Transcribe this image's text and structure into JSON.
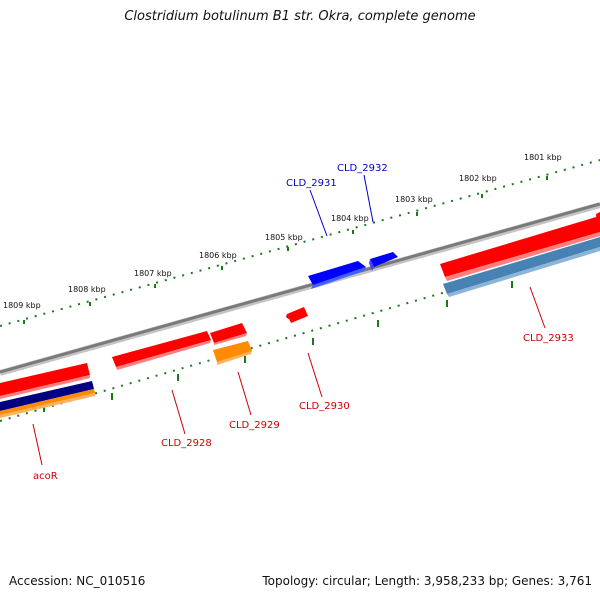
{
  "title": "Clostridium botulinum B1 str. Okra, complete genome",
  "footer": {
    "accession": "Accession: NC_010516",
    "summary": "Topology: circular; Length: 3,958,233 bp; Genes: 3,761"
  },
  "colors": {
    "backbone": "#7a7a7a",
    "tick": "#1a7a1a",
    "gene_red": "#ff0000",
    "gene_blue": "#0000ff",
    "gene_navy": "#000080",
    "gene_orange": "#ff8c00",
    "gene_steel": "#4682b4"
  },
  "kbp_labels": [
    "1801 kbp",
    "1802 kbp",
    "1803 kbp",
    "1804 kbp",
    "1805 kbp",
    "1806 kbp",
    "1807 kbp",
    "1808 kbp",
    "1809 kbp"
  ],
  "gene_labels": [
    {
      "name": "CLD_2931",
      "color": "#0000cc"
    },
    {
      "name": "CLD_2932",
      "color": "#0000cc"
    },
    {
      "name": "CLD_2933",
      "color": "#cc0000"
    },
    {
      "name": "CLD_2930",
      "color": "#cc0000"
    },
    {
      "name": "CLD_2929",
      "color": "#cc0000"
    },
    {
      "name": "CLD_2928",
      "color": "#cc0000"
    },
    {
      "name": "acoR",
      "color": "#cc0000"
    }
  ]
}
